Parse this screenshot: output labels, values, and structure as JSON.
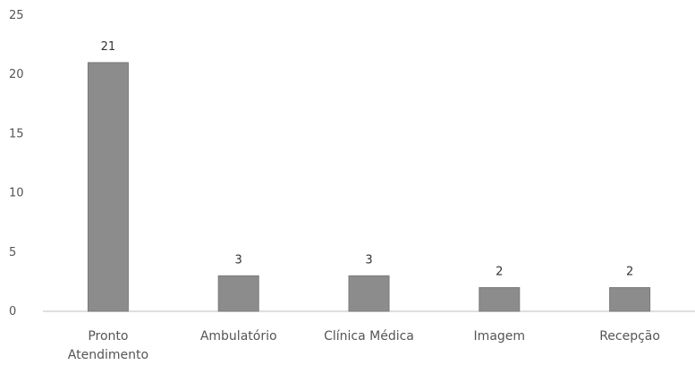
{
  "chart_data": {
    "type": "bar",
    "categories": [
      "Pronto Atendimento",
      "Ambulatório",
      "Clínica Médica",
      "Imagem",
      "Recepção"
    ],
    "category_lines": [
      [
        "Pronto",
        "Atendimento"
      ],
      [
        "Ambulatório"
      ],
      [
        "Clínica Médica"
      ],
      [
        "Imagem"
      ],
      [
        "Recepção"
      ]
    ],
    "values": [
      21,
      3,
      3,
      2,
      2
    ],
    "data_labels": [
      "21",
      "3",
      "3",
      "2",
      "2"
    ],
    "y_ticks": [
      0,
      5,
      10,
      15,
      20,
      25
    ],
    "ylim": [
      0,
      25
    ],
    "grid": false,
    "bar_color": "#8c8c8c",
    "bar_edge_color": "#7a7a7a",
    "axis_color": "#bfbfbf"
  }
}
